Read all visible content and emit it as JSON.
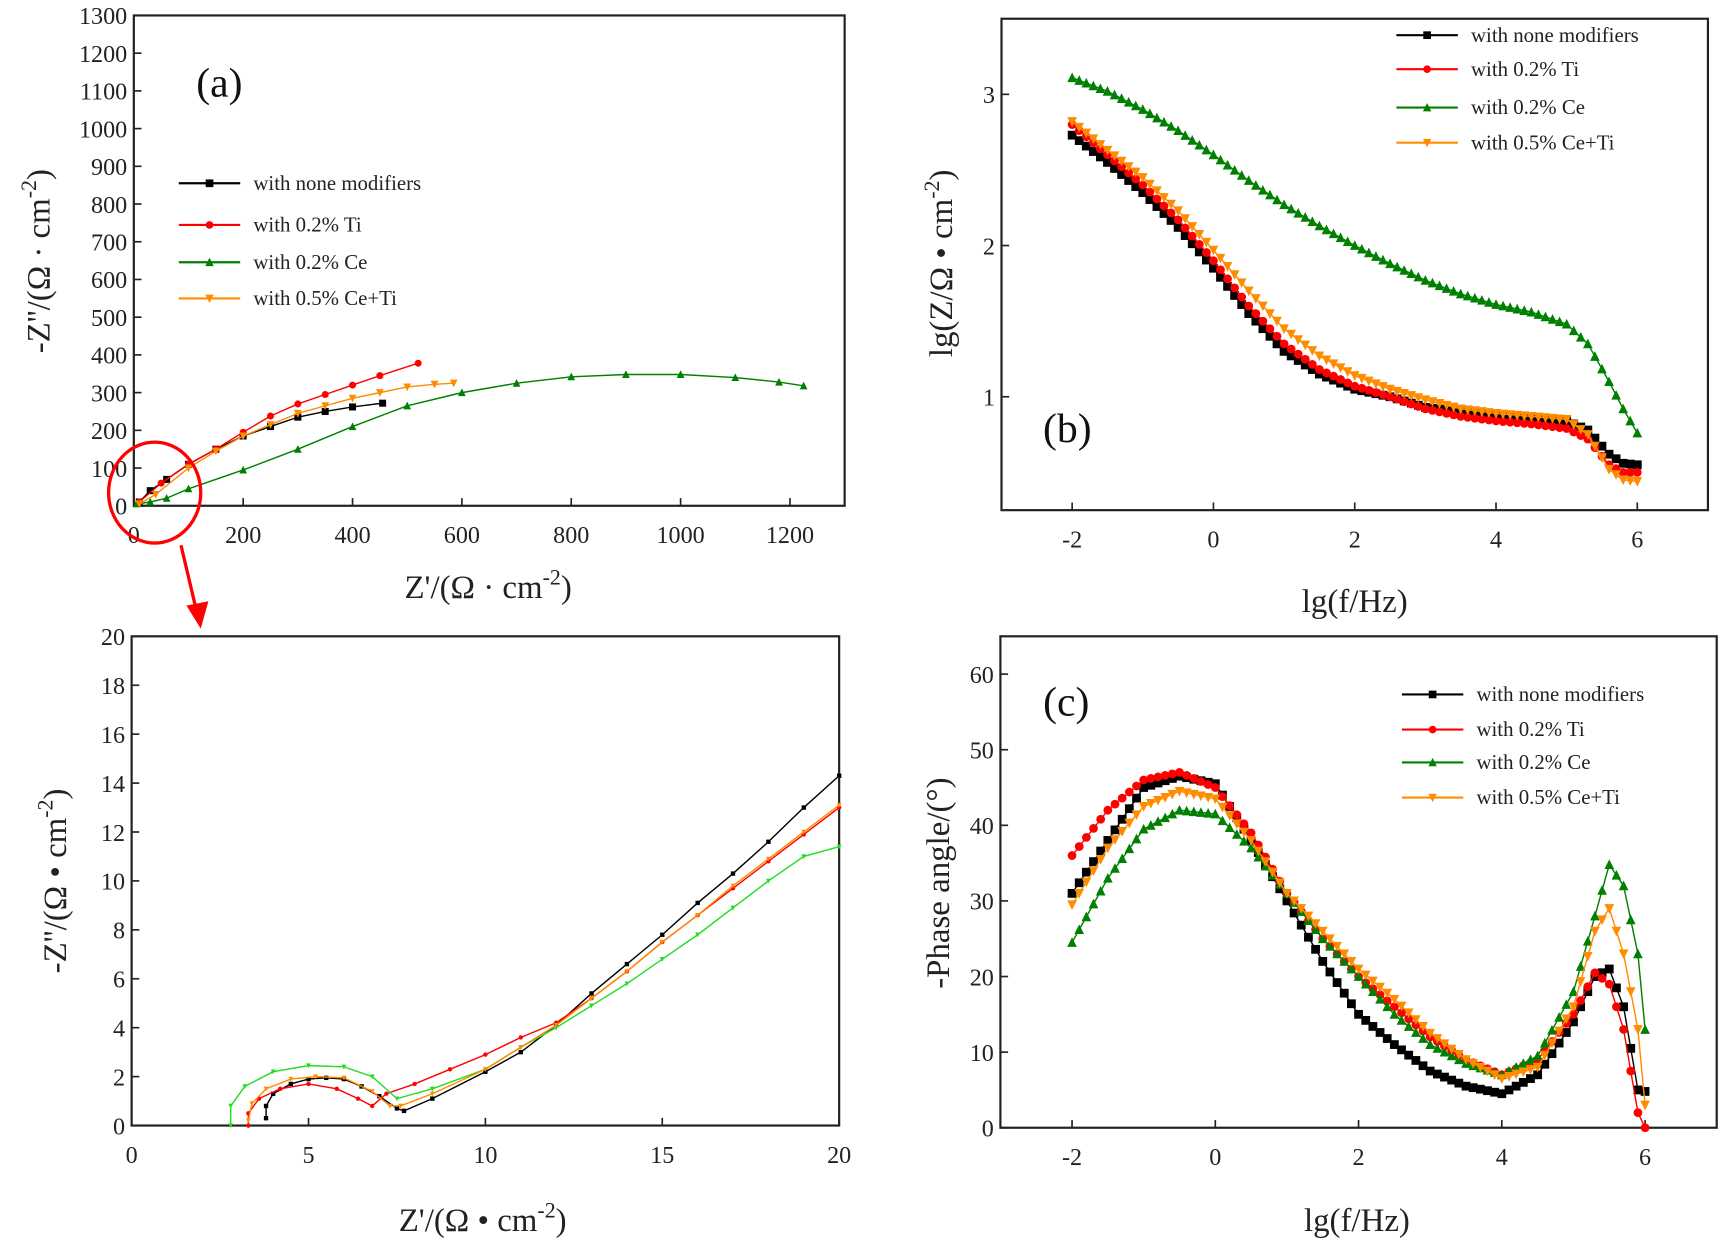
{
  "chart_data": [
    {
      "id": "a",
      "type": "line",
      "panel_label": "(a)",
      "xlabel": {
        "text": "Z'/(Ω · cm",
        "sup": "-2",
        "close": ")"
      },
      "ylabel": {
        "text": "-Z''/(Ω · cm",
        "sup": "-2",
        "close": ")"
      },
      "xlim": [
        0,
        1300
      ],
      "ylim": [
        0,
        1300
      ],
      "xticks": [
        0,
        200,
        400,
        600,
        800,
        1000,
        1200
      ],
      "yticks": [
        0,
        100,
        200,
        300,
        400,
        500,
        600,
        700,
        800,
        900,
        1000,
        1100,
        1200,
        1300
      ],
      "legend_position": "center-left",
      "series": [
        {
          "name": "with none modifiers",
          "color": "#000000",
          "marker": "square",
          "x": [
            10,
            30,
            60,
            100,
            150,
            200,
            250,
            300,
            350,
            400,
            455
          ],
          "y": [
            10,
            40,
            70,
            110,
            150,
            185,
            210,
            235,
            250,
            262,
            272
          ]
        },
        {
          "name": "with 0.2% Ti",
          "color": "#ff0000",
          "marker": "circle",
          "x": [
            10,
            50,
            100,
            150,
            200,
            250,
            300,
            350,
            400,
            450,
            520
          ],
          "y": [
            10,
            60,
            110,
            150,
            195,
            238,
            270,
            295,
            320,
            345,
            378
          ]
        },
        {
          "name": "with 0.2% Ce",
          "color": "#008000",
          "marker": "triangle-up",
          "x": [
            5,
            30,
            60,
            100,
            200,
            300,
            400,
            500,
            600,
            700,
            800,
            900,
            1000,
            1100,
            1180,
            1225
          ],
          "y": [
            5,
            10,
            20,
            45,
            95,
            150,
            210,
            265,
            300,
            325,
            342,
            348,
            348,
            340,
            328,
            318
          ]
        },
        {
          "name": "with 0.5% Ce+Ti",
          "color": "#ff8c00",
          "marker": "triangle-down",
          "x": [
            10,
            40,
            100,
            150,
            200,
            250,
            300,
            350,
            400,
            450,
            500,
            550,
            585
          ],
          "y": [
            5,
            30,
            100,
            145,
            185,
            215,
            245,
            265,
            285,
            300,
            315,
            322,
            325
          ]
        }
      ]
    },
    {
      "id": "b",
      "type": "line",
      "panel_label": "(b)",
      "xlabel": {
        "text": "lg(f/Hz)",
        "sup": "",
        "close": ""
      },
      "ylabel": {
        "text": "lg(Z/Ω • cm",
        "sup": "-2",
        "close": ")"
      },
      "xlim": [
        -3,
        7
      ],
      "ylim": [
        0.25,
        3.5
      ],
      "xticks": [
        -2,
        0,
        2,
        4,
        6
      ],
      "yticks": [
        1,
        2,
        3
      ],
      "legend_position": "top-right",
      "series": [
        {
          "name": "with none modifiers",
          "color": "#000000",
          "marker": "square",
          "x": [
            -2,
            -1.5,
            -1,
            -0.5,
            0,
            0.5,
            1,
            1.5,
            2,
            2.5,
            3,
            3.5,
            4,
            4.5,
            5,
            5.3,
            5.6,
            5.8,
            6
          ],
          "y": [
            2.73,
            2.55,
            2.35,
            2.12,
            1.85,
            1.55,
            1.3,
            1.15,
            1.05,
            1.0,
            0.93,
            0.9,
            0.88,
            0.87,
            0.84,
            0.78,
            0.62,
            0.56,
            0.55
          ]
        },
        {
          "name": "with 0.2% Ti",
          "color": "#ff0000",
          "marker": "circle",
          "x": [
            -2,
            -1.5,
            -1,
            -0.5,
            0,
            0.5,
            1,
            1.5,
            2,
            2.5,
            3,
            3.5,
            4,
            4.5,
            5,
            5.3,
            5.6,
            5.8,
            6
          ],
          "y": [
            2.8,
            2.6,
            2.4,
            2.17,
            1.9,
            1.6,
            1.35,
            1.18,
            1.07,
            1.0,
            0.92,
            0.87,
            0.84,
            0.82,
            0.79,
            0.72,
            0.55,
            0.5,
            0.5
          ]
        },
        {
          "name": "with 0.2% Ce",
          "color": "#008000",
          "marker": "triangle-up",
          "x": [
            -2,
            -1.5,
            -1,
            -0.5,
            0,
            0.5,
            1,
            1.5,
            2,
            2.5,
            3,
            3.5,
            4,
            4.5,
            5,
            5.3,
            5.6,
            5.8,
            6
          ],
          "y": [
            3.11,
            3.02,
            2.9,
            2.76,
            2.6,
            2.43,
            2.27,
            2.13,
            2.0,
            1.88,
            1.77,
            1.68,
            1.61,
            1.56,
            1.48,
            1.35,
            1.1,
            0.92,
            0.76
          ]
        },
        {
          "name": "with 0.5% Ce+Ti",
          "color": "#ff8c00",
          "marker": "triangle-down",
          "x": [
            -2,
            -1.5,
            -1,
            -0.5,
            0,
            0.5,
            1,
            1.5,
            2,
            2.5,
            3,
            3.5,
            4,
            4.5,
            5,
            5.3,
            5.6,
            5.8,
            6
          ],
          "y": [
            2.82,
            2.63,
            2.45,
            2.23,
            1.97,
            1.7,
            1.45,
            1.27,
            1.14,
            1.05,
            0.98,
            0.92,
            0.89,
            0.87,
            0.85,
            0.75,
            0.52,
            0.45,
            0.44
          ]
        }
      ]
    },
    {
      "id": "inset",
      "type": "line",
      "panel_label": "",
      "xlabel": {
        "text": "Z'/(Ω • cm",
        "sup": "-2",
        "close": ")"
      },
      "ylabel": {
        "text": "-Z''/(Ω • cm",
        "sup": "-2",
        "close": ")"
      },
      "xlim": [
        0,
        20
      ],
      "ylim": [
        0,
        20
      ],
      "xticks": [
        0,
        5,
        10,
        15,
        20
      ],
      "yticks": [
        0,
        2,
        4,
        6,
        8,
        10,
        12,
        14,
        16,
        18,
        20
      ],
      "series": [
        {
          "color": "#000000",
          "marker": "square",
          "x": [
            3.8,
            3.8,
            4.0,
            4.5,
            5,
            5.5,
            6,
            6.5,
            7,
            7.5,
            7.7,
            8.5,
            10,
            11,
            12,
            13,
            14,
            15,
            16,
            17,
            18,
            19,
            20
          ],
          "y": [
            0.3,
            0.8,
            1.3,
            1.7,
            1.9,
            1.95,
            1.9,
            1.6,
            1.2,
            0.7,
            0.6,
            1.1,
            2.2,
            3.0,
            4.1,
            5.4,
            6.6,
            7.8,
            9.1,
            10.3,
            11.6,
            13.0,
            14.3
          ]
        },
        {
          "color": "#ff0000",
          "marker": "circle",
          "x": [
            3.3,
            3.3,
            3.6,
            4.2,
            5,
            5.8,
            6.4,
            6.8,
            7.2,
            8,
            9,
            10,
            11,
            12,
            13,
            14,
            15,
            16,
            17,
            18,
            19,
            20
          ],
          "y": [
            0,
            0.5,
            1.1,
            1.5,
            1.7,
            1.5,
            1.1,
            0.8,
            1.3,
            1.7,
            2.3,
            2.9,
            3.6,
            4.2,
            5.2,
            6.3,
            7.5,
            8.6,
            9.7,
            10.8,
            11.9,
            13.0
          ]
        },
        {
          "color": "#22dd22",
          "marker": "triangle-down",
          "x": [
            2.8,
            2.8,
            3.2,
            4,
            5,
            6,
            6.8,
            7.5,
            8.5,
            10,
            11,
            12,
            13,
            14,
            15,
            16,
            17,
            18,
            19,
            20
          ],
          "y": [
            0,
            0.8,
            1.6,
            2.2,
            2.45,
            2.4,
            2.0,
            1.1,
            1.5,
            2.3,
            3.2,
            4.0,
            4.9,
            5.8,
            6.8,
            7.8,
            8.9,
            10.0,
            11.0,
            11.4
          ]
        },
        {
          "color": "#ff8c00",
          "marker": "triangle-down",
          "x": [
            3.3,
            3.4,
            3.8,
            4.5,
            5.2,
            6,
            6.8,
            7.3,
            7.6,
            8.5,
            10,
            11,
            12,
            13,
            14,
            15,
            16,
            17,
            18,
            19,
            20
          ],
          "y": [
            0.2,
            0.9,
            1.5,
            1.9,
            2.0,
            1.95,
            1.4,
            0.8,
            0.8,
            1.3,
            2.3,
            3.2,
            4.1,
            5.2,
            6.3,
            7.5,
            8.6,
            9.8,
            10.9,
            12.0,
            13.1
          ]
        }
      ]
    },
    {
      "id": "c",
      "type": "line",
      "panel_label": "(c)",
      "xlabel": {
        "text": "lg(f/Hz)",
        "sup": "",
        "close": ""
      },
      "ylabel": {
        "text": "-Phase angle/(°)",
        "sup": "",
        "close": ""
      },
      "xlim": [
        -3,
        7
      ],
      "ylim": [
        0,
        65
      ],
      "xticks": [
        -2,
        0,
        2,
        4,
        6
      ],
      "yticks": [
        0,
        10,
        20,
        30,
        40,
        50,
        60
      ],
      "legend_position": "top-right",
      "series": [
        {
          "name": "with none modifiers",
          "color": "#000000",
          "marker": "square",
          "x": [
            -2,
            -1.5,
            -1,
            -0.5,
            0,
            0.5,
            1,
            1.5,
            2,
            2.5,
            3,
            3.5,
            4,
            4.5,
            5,
            5.3,
            5.5,
            5.7,
            5.9,
            6
          ],
          "y": [
            31,
            38,
            45,
            46.5,
            45.5,
            38,
            30,
            22,
            15,
            11,
            7.5,
            5.5,
            4.5,
            7,
            14,
            20,
            21,
            16,
            5,
            4.8
          ]
        },
        {
          "name": "with 0.2% Ti",
          "color": "#ff0000",
          "marker": "circle",
          "x": [
            -2,
            -1.5,
            -1,
            -0.5,
            0,
            0.5,
            1,
            1.5,
            2,
            2.5,
            3,
            3.5,
            4,
            4.5,
            5,
            5.3,
            5.5,
            5.7,
            5.9,
            6
          ],
          "y": [
            36,
            42,
            46,
            47,
            45,
            39,
            31,
            25,
            20,
            16,
            12,
            9,
            7,
            9,
            15,
            20.5,
            19,
            13,
            2,
            0
          ]
        },
        {
          "name": "with 0.2% Ce",
          "color": "#008000",
          "marker": "triangle-up",
          "x": [
            -2,
            -1.5,
            -1,
            -0.5,
            0,
            0.5,
            1,
            1.5,
            2,
            2.5,
            3,
            3.5,
            4,
            4.5,
            5,
            5.3,
            5.5,
            5.7,
            5.9,
            6
          ],
          "y": [
            24.5,
            33,
            39.5,
            42,
            41.5,
            37,
            31,
            25,
            20,
            15,
            11,
            8.5,
            7,
            9.5,
            18,
            28,
            34.8,
            32,
            23,
            13
          ]
        },
        {
          "name": "with 0.5% Ce+Ti",
          "color": "#ff8c00",
          "marker": "triangle-down",
          "x": [
            -2,
            -1.5,
            -1,
            -0.5,
            0,
            0.5,
            1,
            1.5,
            2,
            2.5,
            3,
            3.5,
            4,
            4.5,
            5,
            5.3,
            5.5,
            5.7,
            5.9,
            6
          ],
          "y": [
            29.5,
            37,
            42.5,
            44.5,
            43.5,
            38,
            31,
            26,
            21,
            17,
            12.5,
            9,
            6.5,
            8,
            16,
            26,
            29,
            23,
            13,
            3
          ]
        }
      ]
    }
  ],
  "annotation": {
    "color": "#ff0000"
  }
}
